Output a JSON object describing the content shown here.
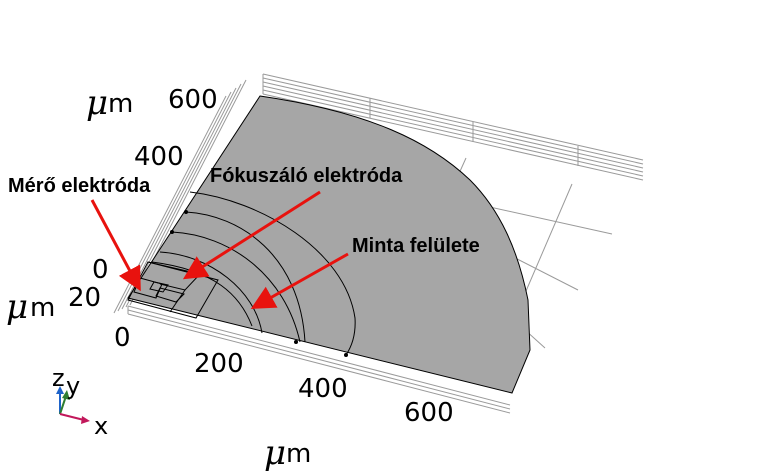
{
  "axes": {
    "y_ticks": [
      "600",
      "400",
      "0"
    ],
    "x_ticks": [
      "200",
      "400",
      "600"
    ],
    "z_ticks": [
      "20",
      "0"
    ],
    "unit_prefix": "μ",
    "unit_suffix": "m"
  },
  "annotations": {
    "mero": "Mérő elektróda",
    "fokuszalo": "Fókuszáló elektróda",
    "minta": "Minta felülete"
  },
  "triad": {
    "z": "z",
    "y": "y",
    "x": "x"
  },
  "colors": {
    "surface": "#a6a6a6",
    "arrow": "#e8120e",
    "grid": "#9a9a9a",
    "triad_x": "#c2185b",
    "triad_y": "#2e7d32",
    "triad_z": "#1e63c9"
  }
}
